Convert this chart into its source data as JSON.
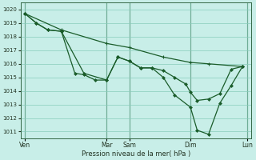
{
  "background_color": "#c8eee8",
  "grid_color": "#88ccbb",
  "line_color": "#1a5c2a",
  "vline_color": "#336644",
  "title": "Pression niveau de la mer( hPa )",
  "ylim": [
    1010.5,
    1020.5
  ],
  "yticks": [
    1011,
    1012,
    1013,
    1014,
    1015,
    1016,
    1017,
    1018,
    1019,
    1020
  ],
  "xlim": [
    -0.1,
    10.1
  ],
  "xtick_positions": [
    0.1,
    3.7,
    4.7,
    7.4,
    9.9
  ],
  "xtick_labels": [
    "Ven",
    "Mar",
    "Sam",
    "Dim",
    "Lun"
  ],
  "vline_positions": [
    0.1,
    3.7,
    4.7,
    7.4,
    9.9
  ],
  "series1": {
    "x": [
      0.1,
      0.6,
      1.1,
      1.7,
      2.3,
      2.7,
      3.2,
      3.7,
      4.2,
      4.7,
      5.2,
      5.7,
      6.2,
      6.7,
      7.2,
      7.4,
      7.7,
      8.2,
      8.7,
      9.2,
      9.7
    ],
    "y": [
      1019.7,
      1019.0,
      1018.5,
      1018.4,
      1015.3,
      1015.2,
      1014.8,
      1014.8,
      1016.5,
      1016.2,
      1015.7,
      1015.7,
      1015.5,
      1015.0,
      1014.5,
      1013.9,
      1013.3,
      1013.4,
      1013.8,
      1015.6,
      1015.8
    ]
  },
  "series2": {
    "x": [
      0.1,
      0.6,
      1.1,
      1.7,
      2.7,
      3.7,
      4.2,
      4.7,
      5.2,
      5.7,
      6.2,
      6.7,
      7.4,
      7.7,
      8.2,
      8.7,
      9.2,
      9.7
    ],
    "y": [
      1019.7,
      1019.0,
      1018.5,
      1018.4,
      1015.3,
      1014.8,
      1016.5,
      1016.2,
      1015.7,
      1015.7,
      1015.0,
      1013.7,
      1012.8,
      1011.1,
      1010.8,
      1013.1,
      1014.4,
      1015.8
    ]
  },
  "series3": {
    "x": [
      0.1,
      1.7,
      3.7,
      4.7,
      6.2,
      7.4,
      8.2,
      9.7
    ],
    "y": [
      1019.7,
      1018.5,
      1017.5,
      1017.2,
      1016.5,
      1016.1,
      1016.0,
      1015.8
    ]
  }
}
